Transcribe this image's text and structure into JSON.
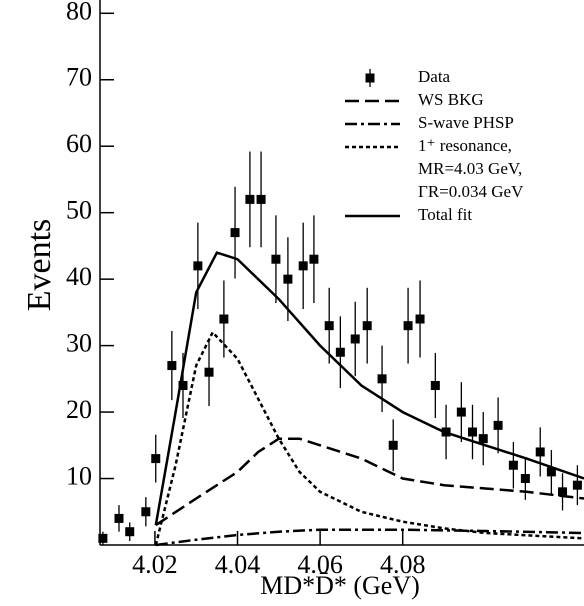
{
  "chart_data": {
    "type": "errorbar-line",
    "x_label": "MD*D̄* (GeV)",
    "y_label": "Events",
    "xlim": [
      4.0067,
      4.1239
    ],
    "ylim": [
      0,
      82
    ],
    "xticks": [
      4.02,
      4.04,
      4.06,
      4.08
    ],
    "yticks": [
      10,
      20,
      30,
      40,
      50,
      60,
      70,
      80
    ],
    "legend": "upper right",
    "legend_note": [
      "MR=4.03 GeV,",
      "ΓR=0.034 GeV"
    ],
    "series": [
      {
        "name": "Data",
        "color": "#000000",
        "style": "points",
        "x": [
          4.0074,
          4.0113,
          4.0139,
          4.0178,
          4.0202,
          4.0241,
          4.0268,
          4.0304,
          4.0331,
          4.0367,
          4.0394,
          4.043,
          4.0457,
          4.0493,
          4.0522,
          4.0559,
          4.0585,
          4.0622,
          4.0649,
          4.0685,
          4.0714,
          4.075,
          4.0777,
          4.0813,
          4.0842,
          4.0879,
          4.0905,
          4.0942,
          4.0969,
          4.0995,
          4.1031,
          4.1068,
          4.1097,
          4.1133,
          4.116,
          4.1187,
          4.1223
        ],
        "values": [
          1,
          4,
          2,
          5,
          13,
          27,
          24,
          42,
          26,
          34,
          47,
          52,
          52,
          43,
          40,
          42,
          43,
          33,
          29,
          31,
          33,
          25,
          15,
          33,
          34,
          24,
          17,
          20,
          17,
          16,
          18,
          12,
          10,
          14,
          11,
          8,
          9
        ],
        "errors": [
          1,
          2,
          1.4,
          2.2,
          3.6,
          5.2,
          4.9,
          6.5,
          5.1,
          5.8,
          6.9,
          7.2,
          7.2,
          6.6,
          6.3,
          6.5,
          6.6,
          5.7,
          5.4,
          5.6,
          5.7,
          5,
          3.9,
          5.7,
          5.8,
          4.9,
          4.1,
          4.5,
          4.1,
          4,
          4.2,
          3.5,
          3.2,
          3.7,
          3.3,
          2.8,
          3
        ]
      },
      {
        "name": "WS BKG",
        "color": "#000000",
        "style": "dashed",
        "x": [
          4.0202,
          4.03,
          4.04,
          4.045,
          4.05,
          4.055,
          4.06,
          4.07,
          4.08,
          4.09,
          4.1,
          4.11,
          4.1239
        ],
        "values": [
          3,
          7,
          11,
          14,
          16,
          16,
          15,
          13,
          10,
          9,
          8.5,
          8,
          7
        ]
      },
      {
        "name": "S-wave PHSP",
        "color": "#000000",
        "style": "dashdot",
        "x": [
          4.0202,
          4.03,
          4.04,
          4.05,
          4.06,
          4.08,
          4.1,
          4.1239
        ],
        "values": [
          0,
          0.8,
          1.5,
          2,
          2.3,
          2.3,
          2.1,
          1.8
        ]
      },
      {
        "name": "1⁺ resonance,",
        "color": "#000000",
        "style": "dotted",
        "x": [
          4.0202,
          4.025,
          4.03,
          4.034,
          4.04,
          4.045,
          4.05,
          4.055,
          4.06,
          4.07,
          4.08,
          4.09,
          4.1,
          4.1239
        ],
        "values": [
          0,
          12,
          27,
          32,
          28,
          22,
          16,
          11,
          8,
          5,
          3.5,
          2.5,
          1.8,
          1
        ]
      },
      {
        "name": "Total fit",
        "color": "#000000",
        "style": "solid",
        "x": [
          4.0202,
          4.025,
          4.03,
          4.035,
          4.04,
          4.05,
          4.06,
          4.07,
          4.08,
          4.09,
          4.1,
          4.11,
          4.1239
        ],
        "values": [
          3,
          20,
          38,
          44,
          43,
          37,
          30,
          24,
          20,
          17,
          15,
          13,
          10
        ]
      }
    ]
  }
}
